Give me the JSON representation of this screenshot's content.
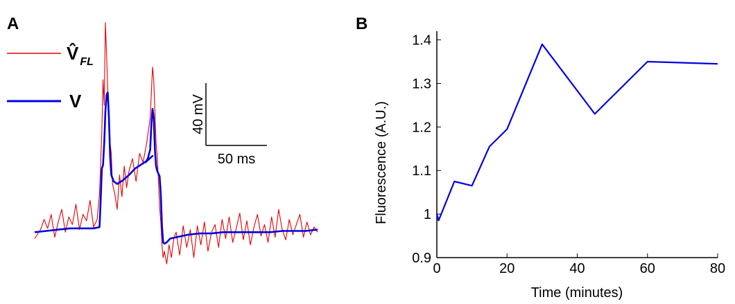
{
  "chart_data": [
    {
      "panel": "A",
      "type": "line",
      "title": "",
      "legend": [
        {
          "name": "V̂",
          "subscript": "FL",
          "color": "#e00000"
        },
        {
          "name": "V",
          "color": "#0000e0"
        }
      ],
      "scale_bar": {
        "vertical_label": "40 mV",
        "horizontal_label": "50 ms",
        "vertical_mV": 40,
        "horizontal_ms": 50
      },
      "x_unit": "ms",
      "y_unit": "mV",
      "xlim": [
        0,
        240
      ],
      "ylim": [
        -20,
        180
      ],
      "series": [
        {
          "name": "V",
          "color": "#0000e0",
          "x": [
            0,
            10,
            20,
            30,
            40,
            50,
            55,
            56,
            57,
            58,
            59,
            60,
            61,
            62,
            63,
            64,
            65,
            67,
            70,
            75,
            80,
            85,
            90,
            95,
            100,
            94,
            96,
            98,
            99,
            100,
            101,
            102,
            103,
            104,
            106,
            107,
            108,
            109,
            110,
            112,
            115,
            120,
            130,
            140,
            150,
            160,
            170,
            180,
            190,
            200,
            210,
            220,
            230,
            240
          ],
          "y": [
            0,
            1,
            2,
            3,
            3,
            3,
            4,
            25,
            50,
            53,
            70,
            95,
            108,
            110,
            90,
            60,
            45,
            40,
            38,
            41,
            45,
            50,
            53,
            56,
            60,
            55,
            58,
            65,
            85,
            97,
            90,
            65,
            52,
            48,
            44,
            30,
            5,
            -8,
            -9,
            -8,
            -5,
            -4,
            -2,
            -1,
            -1,
            0,
            0,
            0,
            0,
            0,
            1,
            1,
            1,
            2
          ]
        },
        {
          "name": "V̂_FL",
          "color": "#e00000",
          "x": [
            0,
            5,
            8,
            11,
            14,
            17,
            20,
            23,
            26,
            29,
            32,
            35,
            38,
            41,
            44,
            47,
            50,
            53,
            55,
            56,
            57,
            58,
            59,
            60,
            61,
            62,
            63,
            64,
            65,
            66,
            68,
            70,
            72,
            74,
            76,
            78,
            80,
            83,
            86,
            89,
            92,
            95,
            98,
            100,
            101,
            102,
            103,
            104,
            105,
            106,
            107,
            108,
            109,
            110,
            112,
            114,
            116,
            118,
            120,
            123,
            126,
            129,
            132,
            135,
            138,
            141,
            144,
            147,
            150,
            153,
            156,
            159,
            162,
            165,
            168,
            171,
            174,
            177,
            180,
            183,
            186,
            189,
            192,
            195,
            198,
            201,
            204,
            207,
            210,
            213,
            216,
            219,
            222,
            225,
            228,
            231,
            234,
            237,
            240
          ],
          "y": [
            -5,
            2,
            10,
            3,
            14,
            -4,
            8,
            18,
            0,
            12,
            6,
            22,
            2,
            14,
            9,
            25,
            4,
            10,
            30,
            55,
            80,
            120,
            100,
            165,
            140,
            110,
            95,
            70,
            62,
            38,
            30,
            18,
            45,
            28,
            52,
            35,
            48,
            58,
            40,
            62,
            55,
            70,
            90,
            130,
            120,
            95,
            70,
            60,
            40,
            20,
            8,
            -10,
            -20,
            -15,
            -25,
            -10,
            -20,
            -5,
            0,
            -18,
            5,
            -12,
            2,
            -20,
            5,
            -10,
            8,
            -15,
            0,
            6,
            -12,
            10,
            -5,
            12,
            -8,
            3,
            15,
            -6,
            9,
            -10,
            4,
            14,
            -3,
            6,
            -8,
            12,
            -4,
            18,
            2,
            -6,
            10,
            -2,
            6,
            14,
            -4,
            8,
            -2,
            4,
            0
          ]
        }
      ]
    },
    {
      "panel": "B",
      "type": "line",
      "title": "",
      "xlabel": "Time (minutes)",
      "ylabel": "Fluorescence (A.U.)",
      "xlim": [
        0,
        80
      ],
      "ylim": [
        0.9,
        1.42
      ],
      "xticks": [
        0,
        20,
        40,
        60,
        80
      ],
      "yticks": [
        0.9,
        1,
        1.1,
        1.2,
        1.3,
        1.4
      ],
      "ytick_labels": [
        "0.9",
        "1",
        "1.1",
        "1.2",
        "1.3",
        "1.4"
      ],
      "series": [
        {
          "color": "#0000e0",
          "x": [
            0,
            0.5,
            5,
            10,
            15,
            20,
            30,
            45,
            60,
            80
          ],
          "y": [
            1.0,
            0.985,
            1.075,
            1.065,
            1.155,
            1.195,
            1.39,
            1.23,
            1.35,
            1.345
          ]
        }
      ]
    }
  ]
}
